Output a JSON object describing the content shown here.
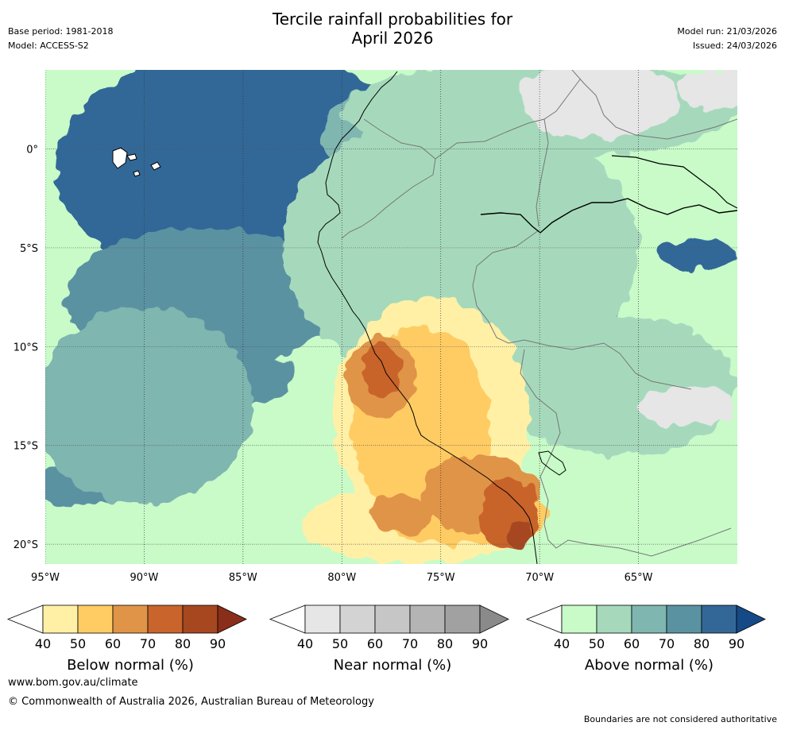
{
  "header": {
    "title_line1": "Tercile rainfall probabilities for",
    "title_line2": "April 2026",
    "base_period": "Base period: 1981-2018",
    "model": "Model: ACCESS-S2",
    "model_run": "Model run: 21/03/2026",
    "issued": "Issued: 24/03/2026"
  },
  "chart_data": {
    "type": "heatmap",
    "title": "Tercile rainfall probabilities for April 2026",
    "x_ticks": [
      "95°W",
      "90°W",
      "85°W",
      "80°W",
      "75°W",
      "70°W",
      "65°W"
    ],
    "x_tick_values": [
      -95,
      -90,
      -85,
      -80,
      -75,
      -70,
      -65
    ],
    "y_ticks": [
      "0°",
      "5°S",
      "10°S",
      "15°S",
      "20°S"
    ],
    "y_tick_values": [
      0,
      -5,
      -10,
      -15,
      -20
    ],
    "xlim": [
      -95,
      -60
    ],
    "ylim": [
      -21,
      4
    ],
    "grid": true,
    "regions": [
      {
        "category": "above",
        "level": 90,
        "center": [
          -84.8,
          1.7
        ],
        "radius": [
          5.0,
          3.5
        ]
      },
      {
        "category": "above",
        "level": 90,
        "center": [
          -82.1,
          -3.4
        ],
        "radius": [
          2.5,
          1.3
        ]
      },
      {
        "category": "above",
        "level": 80,
        "center": [
          -85.0,
          -1.0
        ],
        "radius": [
          9.5,
          6.0
        ]
      },
      {
        "category": "above",
        "level": 80,
        "center": [
          -62.0,
          -5.3
        ],
        "radius": [
          2.0,
          0.8
        ]
      },
      {
        "category": "above",
        "level": 80,
        "center": [
          -93.0,
          -13.0
        ],
        "radius": [
          2.0,
          0.8
        ]
      },
      {
        "category": "above",
        "level": 70,
        "center": [
          -87.0,
          -7.5
        ],
        "radius": [
          7.0,
          3.5
        ]
      },
      {
        "category": "above",
        "level": 70,
        "center": [
          -85.0,
          -11.5
        ],
        "radius": [
          2.5,
          1.5
        ]
      },
      {
        "category": "above",
        "level": 70,
        "center": [
          -73.5,
          -13.0
        ],
        "radius": [
          1.5,
          1.0
        ]
      },
      {
        "category": "above",
        "level": 70,
        "center": [
          -93.0,
          -17.0
        ],
        "radius": [
          2.5,
          1.0
        ]
      },
      {
        "category": "above",
        "level": 60,
        "center": [
          -90.0,
          -13.0
        ],
        "radius": [
          5.5,
          5.0
        ]
      },
      {
        "category": "above",
        "level": 60,
        "center": [
          -72.0,
          -8.0
        ],
        "radius": [
          6.0,
          3.0
        ]
      },
      {
        "category": "above",
        "level": 60,
        "center": [
          -77.0,
          0.5
        ],
        "radius": [
          4.0,
          3.0
        ]
      },
      {
        "category": "above",
        "level": 50,
        "center": [
          -74.0,
          -5.0
        ],
        "radius": [
          9.0,
          7.0
        ]
      },
      {
        "category": "above",
        "level": 50,
        "center": [
          -66.0,
          -12.0
        ],
        "radius": [
          6.0,
          3.5
        ]
      },
      {
        "category": "above",
        "level": 50,
        "center": [
          -70.0,
          2.0
        ],
        "radius": [
          10.0,
          2.5
        ]
      },
      {
        "category": "near",
        "level": 40,
        "center": [
          -67.0,
          2.5
        ],
        "radius": [
          4.0,
          2.0
        ]
      },
      {
        "category": "near",
        "level": 40,
        "center": [
          -62.5,
          -13.0
        ],
        "radius": [
          2.5,
          1.0
        ]
      },
      {
        "category": "near",
        "level": 40,
        "center": [
          -61.0,
          3.0
        ],
        "radius": [
          2.0,
          1.0
        ]
      },
      {
        "category": "below",
        "level": 40,
        "center": [
          -75.5,
          -13.5
        ],
        "radius": [
          5.0,
          6.0
        ]
      },
      {
        "category": "below",
        "level": 40,
        "center": [
          -76.0,
          -19.0
        ],
        "radius": [
          6.0,
          2.0
        ]
      },
      {
        "category": "below",
        "level": 50,
        "center": [
          -76.0,
          -14.0
        ],
        "radius": [
          3.5,
          5.0
        ]
      },
      {
        "category": "below",
        "level": 50,
        "center": [
          -74.0,
          -18.5
        ],
        "radius": [
          4.5,
          1.5
        ]
      },
      {
        "category": "below",
        "level": 60,
        "center": [
          -78.0,
          -11.5
        ],
        "radius": [
          1.8,
          2.0
        ]
      },
      {
        "category": "below",
        "level": 60,
        "center": [
          -73.0,
          -17.5
        ],
        "radius": [
          3.0,
          2.0
        ]
      },
      {
        "category": "below",
        "level": 60,
        "center": [
          -77.0,
          -18.5
        ],
        "radius": [
          1.6,
          1.0
        ]
      },
      {
        "category": "below",
        "level": 70,
        "center": [
          -78.0,
          -11.2
        ],
        "radius": [
          1.0,
          1.3
        ]
      },
      {
        "category": "below",
        "level": 70,
        "center": [
          -71.5,
          -18.5
        ],
        "radius": [
          1.5,
          1.8
        ]
      },
      {
        "category": "below",
        "level": 80,
        "center": [
          -71.0,
          -19.5
        ],
        "radius": [
          0.6,
          0.8
        ]
      }
    ]
  },
  "colorbars": [
    {
      "label": "Below normal (%)",
      "ticks": [
        "40",
        "50",
        "60",
        "70",
        "80",
        "90"
      ],
      "colors": [
        "#fff0a6",
        "#ffcc64",
        "#e09447",
        "#c8642c",
        "#a64720",
        "#8a2d1a"
      ]
    },
    {
      "label": "Near normal (%)",
      "ticks": [
        "40",
        "50",
        "60",
        "70",
        "80",
        "90"
      ],
      "colors": [
        "#e6e6e6",
        "#d3d3d3",
        "#c6c6c6",
        "#b4b4b4",
        "#a1a1a1",
        "#8a8a8a"
      ]
    },
    {
      "label": "Above normal (%)",
      "ticks": [
        "40",
        "50",
        "60",
        "70",
        "80",
        "90"
      ],
      "colors": [
        "#c8fbc8",
        "#a6d9bc",
        "#7fb6b0",
        "#5a92a2",
        "#336797",
        "#154a87"
      ]
    }
  ],
  "footer": {
    "website": "www.bom.gov.au/climate",
    "copyright": "© Commonwealth of Australia 2026, Australian Bureau of Meteorology",
    "disclaimer": "Boundaries are not considered authoritative"
  }
}
